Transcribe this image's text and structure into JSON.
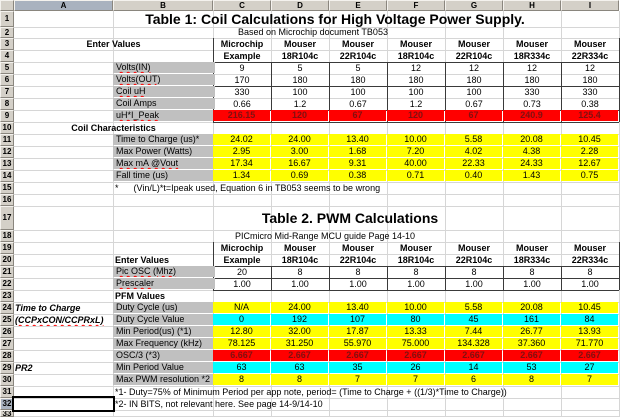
{
  "columns": [
    "A",
    "B",
    "C",
    "D",
    "E",
    "F",
    "G",
    "H",
    "I"
  ],
  "row_count": 33,
  "selection": {
    "cell": "A32",
    "column": "A",
    "row": 32
  },
  "colors": {
    "result_yellow": "#ffff00",
    "register_cyan": "#00ffff",
    "alert_red": "#ff0000",
    "label_gray": "#c0c0c0",
    "header_chrome_gray": "#d4d0c8"
  },
  "series_headers": [
    {
      "l1": "Microchip",
      "l2": "Example"
    },
    {
      "l1": "Mouser",
      "l2": "18R104c"
    },
    {
      "l1": "Mouser",
      "l2": "22R104c"
    },
    {
      "l1": "Mouser",
      "l2": "18R104c"
    },
    {
      "l1": "Mouser",
      "l2": "22R104c"
    },
    {
      "l1": "Mouser",
      "l2": "18R334c"
    },
    {
      "l1": "Mouser",
      "l2": "22R334c"
    }
  ],
  "table1": {
    "title": "Table 1: Coil Calculations for High Voltage Power Supply.",
    "subtitle": "Based on Microchip document TB053",
    "enter_values_label": "Enter Values",
    "section_label": "Coil Characteristics",
    "footnote": "*      (Vin/L)*t=Ipeak used, Equation 6 in TB053 seems to be wrong",
    "input_rows": [
      {
        "label": "Volts(IN)",
        "sq": true,
        "values": [
          "9",
          "5",
          "5",
          "12",
          "12",
          "12",
          "12"
        ]
      },
      {
        "label": "Volts(OUT)",
        "sq": true,
        "values": [
          "170",
          "180",
          "180",
          "180",
          "180",
          "180",
          "180"
        ]
      },
      {
        "label": "Coil uH",
        "sq": true,
        "values": [
          "330",
          "100",
          "100",
          "100",
          "100",
          "330",
          "330"
        ]
      },
      {
        "label": "Coil Amps",
        "values": [
          "0.66",
          "1.2",
          "0.67",
          "1.2",
          "0.67",
          "0.73",
          "0.38"
        ]
      },
      {
        "label": "uH*I_Peak",
        "sq": true,
        "type": "red",
        "values": [
          "216.15",
          "120",
          "67",
          "120",
          "67",
          "240.9",
          "125.4"
        ]
      }
    ],
    "result_rows": [
      {
        "label": "Time to Charge (us)*",
        "values": [
          "24.02",
          "24.00",
          "13.40",
          "10.00",
          "5.58",
          "20.08",
          "10.45"
        ]
      },
      {
        "label": "Max Power (Watts)",
        "values": [
          "2.95",
          "3.00",
          "1.68",
          "7.20",
          "4.02",
          "4.38",
          "2.28"
        ]
      },
      {
        "label": "Max mA @Vout",
        "sq": true,
        "values": [
          "17.34",
          "16.67",
          "9.31",
          "40.00",
          "22.33",
          "24.33",
          "12.67"
        ]
      },
      {
        "label": "Fall time (us)",
        "values": [
          "1.34",
          "0.69",
          "0.38",
          "0.71",
          "0.40",
          "1.43",
          "0.75"
        ]
      }
    ]
  },
  "table2": {
    "title": "Table 2. PWM Calculations",
    "subtitle": "PICmicro Mid-Range MCU guide Page 14-10",
    "enter_values_label": "Enter Values",
    "section_label": "PFM Values",
    "input_rows": [
      {
        "label": "Pic OSC (Mhz)",
        "sq": true,
        "values": [
          "20",
          "8",
          "8",
          "8",
          "8",
          "8",
          "8"
        ]
      },
      {
        "label": "Prescaler",
        "sq": true,
        "values": [
          "1.00",
          "1.00",
          "1.00",
          "1.00",
          "1.00",
          "1.00",
          "1.00"
        ]
      }
    ],
    "pfm_rows": [
      {
        "a": "Time to Charge",
        "label": "Duty Cycle (us)",
        "type": "yellow",
        "values": [
          "N/A",
          "24.00",
          "13.40",
          "10.00",
          "5.58",
          "20.08",
          "10.45"
        ]
      },
      {
        "a": "(CCPxCON/CCPRxL)",
        "a_sq": true,
        "label": "Duty Cycle Value",
        "type": "cyan",
        "values": [
          "0",
          "192",
          "107",
          "80",
          "45",
          "161",
          "84"
        ]
      },
      {
        "label": "Min Period(us)  (*1)",
        "type": "yellow",
        "values": [
          "12.80",
          "32.00",
          "17.87",
          "13.33",
          "7.44",
          "26.77",
          "13.93"
        ]
      },
      {
        "label": "Max Frequency (kHz)",
        "type": "yellow",
        "values": [
          "78.125",
          "31.250",
          "55.970",
          "75.000",
          "134.328",
          "37.360",
          "71.770"
        ]
      },
      {
        "label": "OSC/3    (*3)",
        "type": "red",
        "values": [
          "6.667",
          "2.667",
          "2.667",
          "2.667",
          "2.667",
          "2.667",
          "2.667"
        ]
      },
      {
        "a": "PR2",
        "label": "Min Period Value",
        "type": "cyan",
        "values": [
          "63",
          "63",
          "35",
          "26",
          "14",
          "53",
          "27"
        ]
      },
      {
        "label": "Max PWM resolution *2",
        "type": "yellow",
        "values": [
          "8",
          "8",
          "7",
          "7",
          "6",
          "8",
          "7"
        ]
      }
    ],
    "footnotes": [
      "*1-  Duty=75% of Minimum Period per app note, period= (Time to Charge + ((1/3)*Time to Charge))",
      "*2- IN BITS, not relevant here. See page 14-9/14-10"
    ]
  }
}
